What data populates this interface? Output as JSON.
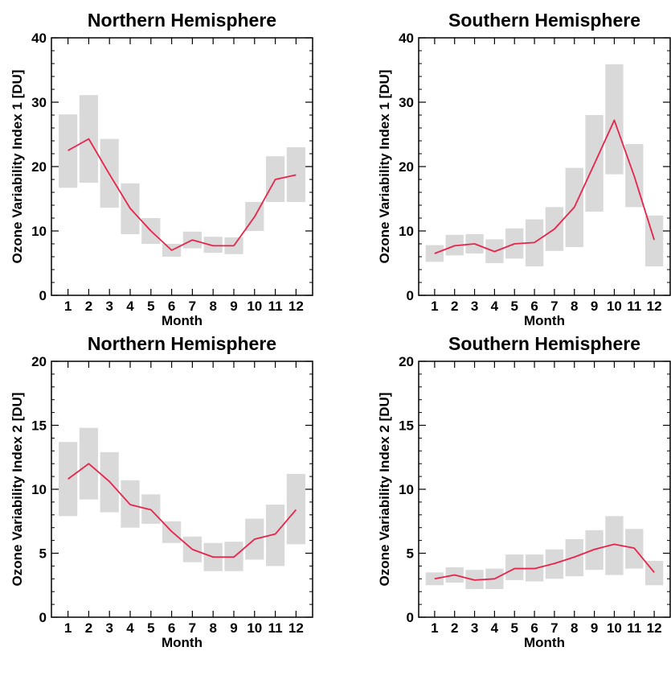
{
  "chart_data": [
    {
      "type": "line",
      "title": "Northern Hemisphere",
      "xlabel": "Month",
      "ylabel": "Ozone Variability Index 1 [DU]",
      "xlim": [
        0.2,
        12.8
      ],
      "ylim": [
        0,
        40
      ],
      "x_ticks": [
        1,
        2,
        3,
        4,
        5,
        6,
        7,
        8,
        9,
        10,
        11,
        12
      ],
      "y_ticks": [
        0,
        10,
        20,
        30,
        40
      ],
      "x": [
        1,
        2,
        3,
        4,
        5,
        6,
        7,
        8,
        9,
        10,
        11,
        12
      ],
      "series": [
        {
          "values": [
            22.5,
            24.3,
            18.8,
            13.5,
            10.0,
            7.0,
            8.6,
            7.7,
            7.7,
            12.2,
            18.0,
            18.7
          ]
        }
      ],
      "range_low": [
        16.7,
        17.5,
        13.6,
        9.5,
        8.0,
        6.0,
        7.3,
        6.6,
        6.4,
        10.0,
        14.5,
        14.5
      ],
      "range_high": [
        28.1,
        31.1,
        24.3,
        17.4,
        12.0,
        8.0,
        9.9,
        9.1,
        9.0,
        14.5,
        21.6,
        23.0
      ],
      "line_color": "#e8234a",
      "range_color": "#d9d9d9"
    },
    {
      "type": "line",
      "title": "Southern Hemisphere",
      "xlabel": "Month",
      "ylabel": "Ozone Variability Index 1 [DU]",
      "xlim": [
        0.2,
        12.8
      ],
      "ylim": [
        0,
        40
      ],
      "x_ticks": [
        1,
        2,
        3,
        4,
        5,
        6,
        7,
        8,
        9,
        10,
        11,
        12
      ],
      "y_ticks": [
        0,
        10,
        20,
        30,
        40
      ],
      "x": [
        1,
        2,
        3,
        4,
        5,
        6,
        7,
        8,
        9,
        10,
        11,
        12
      ],
      "series": [
        {
          "values": [
            6.5,
            7.7,
            8.0,
            6.8,
            8.0,
            8.2,
            10.3,
            13.7,
            20.4,
            27.2,
            18.5,
            8.6
          ]
        }
      ],
      "range_low": [
        5.2,
        6.2,
        6.5,
        5.0,
        5.7,
        4.5,
        6.9,
        7.5,
        13.0,
        18.8,
        13.7,
        4.5
      ],
      "range_high": [
        7.8,
        9.4,
        9.5,
        8.7,
        10.4,
        11.8,
        13.7,
        19.8,
        28.0,
        35.9,
        23.5,
        12.4
      ],
      "line_color": "#e8234a",
      "range_color": "#d9d9d9"
    },
    {
      "type": "line",
      "title": "Northern Hemisphere",
      "xlabel": "Month",
      "ylabel": "Ozone Variability Index 2 [DU]",
      "xlim": [
        0.2,
        12.8
      ],
      "ylim": [
        0,
        20
      ],
      "x_ticks": [
        1,
        2,
        3,
        4,
        5,
        6,
        7,
        8,
        9,
        10,
        11,
        12
      ],
      "y_ticks": [
        0,
        5,
        10,
        15,
        20
      ],
      "x": [
        1,
        2,
        3,
        4,
        5,
        6,
        7,
        8,
        9,
        10,
        11,
        12
      ],
      "series": [
        {
          "values": [
            10.8,
            12.0,
            10.6,
            8.8,
            8.4,
            6.7,
            5.3,
            4.7,
            4.7,
            6.1,
            6.5,
            8.4
          ]
        }
      ],
      "range_low": [
        7.9,
        9.2,
        8.2,
        7.0,
        7.3,
        5.8,
        4.3,
        3.6,
        3.6,
        4.5,
        4.0,
        5.7
      ],
      "range_high": [
        13.7,
        14.8,
        12.9,
        10.7,
        9.6,
        7.5,
        6.3,
        5.8,
        5.9,
        7.7,
        8.8,
        11.2
      ],
      "line_color": "#e8234a",
      "range_color": "#d9d9d9"
    },
    {
      "type": "line",
      "title": "Southern Hemisphere",
      "xlabel": "Month",
      "ylabel": "Ozone Variability Index 2 [DU]",
      "xlim": [
        0.2,
        12.8
      ],
      "ylim": [
        0,
        20
      ],
      "x_ticks": [
        1,
        2,
        3,
        4,
        5,
        6,
        7,
        8,
        9,
        10,
        11,
        12
      ],
      "y_ticks": [
        0,
        5,
        10,
        15,
        20
      ],
      "x": [
        1,
        2,
        3,
        4,
        5,
        6,
        7,
        8,
        9,
        10,
        11,
        12
      ],
      "series": [
        {
          "values": [
            3.0,
            3.3,
            2.9,
            3.0,
            3.8,
            3.8,
            4.2,
            4.7,
            5.3,
            5.7,
            5.4,
            3.5
          ]
        }
      ],
      "range_low": [
        2.5,
        2.7,
        2.2,
        2.2,
        2.9,
        2.8,
        3.0,
        3.2,
        3.7,
        3.3,
        3.8,
        2.5
      ],
      "range_high": [
        3.5,
        3.9,
        3.7,
        3.8,
        4.9,
        4.9,
        5.3,
        6.1,
        6.8,
        7.9,
        6.9,
        4.4
      ],
      "line_color": "#e8234a",
      "range_color": "#d9d9d9"
    }
  ]
}
